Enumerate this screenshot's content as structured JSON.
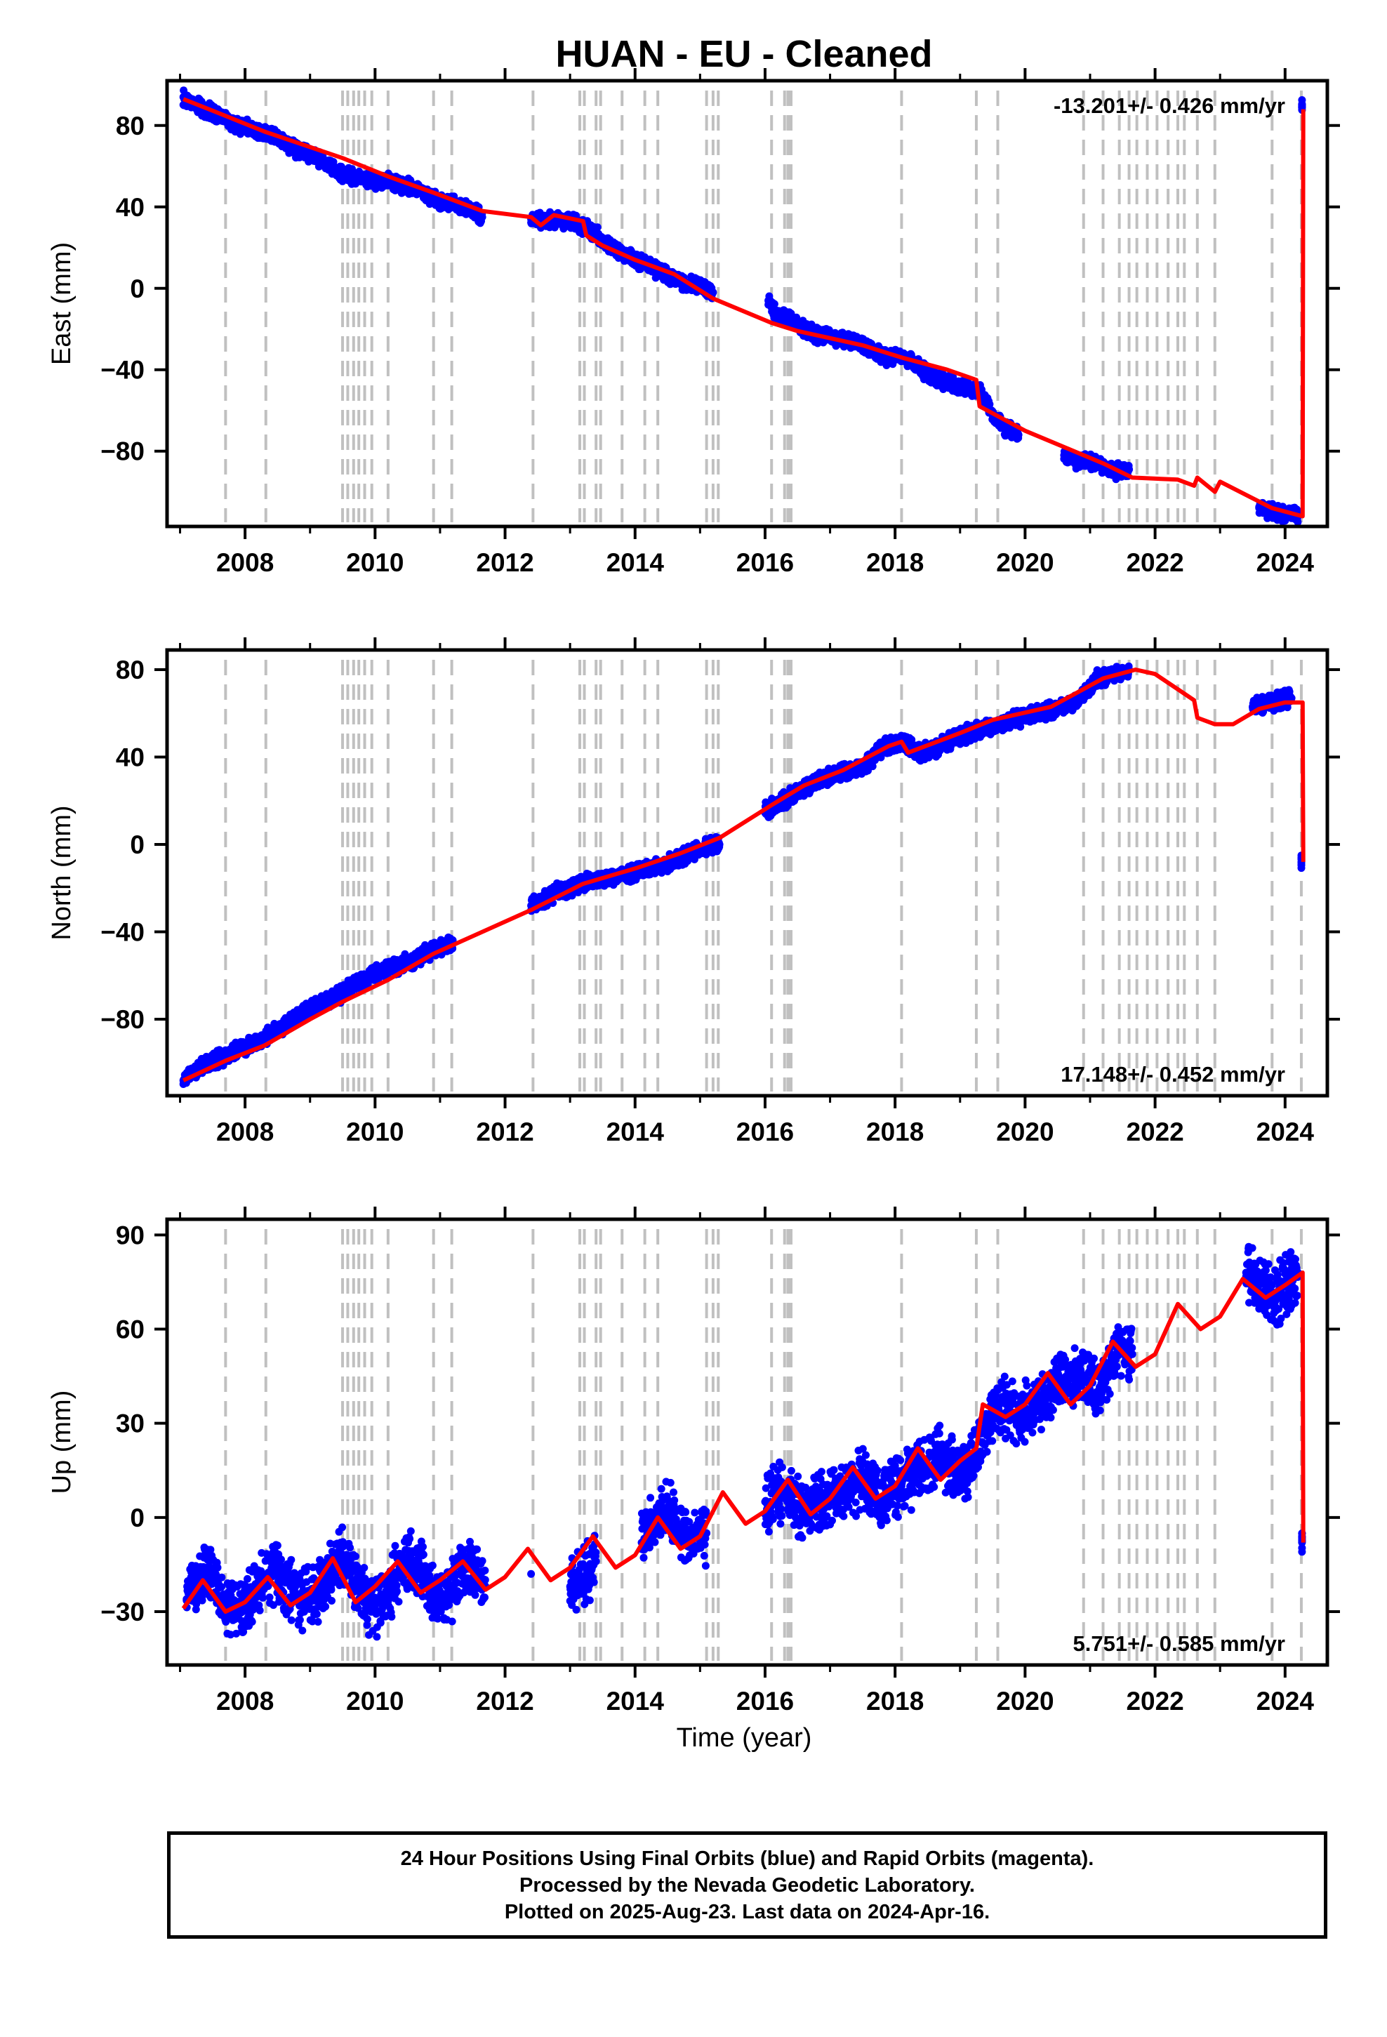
{
  "figure": {
    "title": "HUAN  - EU - Cleaned"
  },
  "colors": {
    "final_orbits": "#0000ff",
    "model": "#ff0000",
    "steps": "#c0c0c0",
    "frame": "#000000"
  },
  "step_years": [
    2007.7,
    2008.32,
    2009.5,
    2009.58,
    2009.67,
    2009.75,
    2009.84,
    2009.95,
    2010.2,
    2010.9,
    2011.18,
    2012.43,
    2013.15,
    2013.22,
    2013.4,
    2013.47,
    2013.8,
    2014.15,
    2014.35,
    2015.1,
    2015.2,
    2015.28,
    2016.1,
    2016.3,
    2016.35,
    2016.38,
    2016.4,
    2018.1,
    2019.25,
    2019.58,
    2020.9,
    2021.2,
    2021.45,
    2021.6,
    2021.72,
    2021.88,
    2022.03,
    2022.2,
    2022.35,
    2022.45,
    2022.65,
    2022.92,
    2023.8,
    2024.25
  ],
  "chart_data": [
    {
      "type": "scatter",
      "id": "east",
      "title": "HUAN  - EU - Cleaned",
      "xlabel": "",
      "ylabel": "East (mm)",
      "xlim": [
        2006.8,
        2024.65
      ],
      "ylim": [
        -117,
        102
      ],
      "xticks": [
        2008,
        2010,
        2012,
        2014,
        2016,
        2018,
        2020,
        2022,
        2024
      ],
      "xtick_labels": [
        "2008",
        "2010",
        "2012",
        "2014",
        "2016",
        "2018",
        "2020",
        "2022",
        "2024"
      ],
      "yticks": [
        -80,
        -40,
        0,
        40,
        80
      ],
      "ytick_labels": [
        "−80",
        "−40",
        "0",
        "40",
        "80"
      ],
      "rate_label": "-13.201+/- 0.426 mm/yr",
      "rate_label_position": "top-right",
      "grid": false,
      "series": [
        {
          "x": [
            2007.05,
            2007.2,
            2007.4,
            2007.6,
            2007.8,
            2008.0,
            2008.2,
            2008.4,
            2008.6,
            2008.8,
            2009.0,
            2009.2,
            2009.45,
            2009.6,
            2009.8,
            2010.0,
            2010.2,
            2010.4,
            2010.6,
            2010.8,
            2011.0,
            2011.2,
            2011.45,
            2011.65,
            2012.4,
            2012.75,
            2013.0,
            2013.3,
            2013.6,
            2013.85,
            2014.0,
            2014.2,
            2014.4,
            2014.6,
            2014.8,
            2015.0,
            2015.2,
            2016.05,
            2016.2,
            2016.4,
            2016.6,
            2016.8,
            2017.0,
            2017.2,
            2017.4,
            2017.7,
            2017.9,
            2018.1,
            2018.3,
            2018.5,
            2018.7,
            2018.9,
            2019.1,
            2019.3,
            2019.5,
            2019.7,
            2019.9,
            2020.6,
            2020.8,
            2021.0,
            2021.2,
            2021.4,
            2021.6,
            2023.6,
            2023.8,
            2024.0,
            2024.2,
            2024.26
          ],
          "y": [
            94,
            91,
            88,
            84,
            81,
            79,
            77,
            75,
            71,
            68,
            66,
            62,
            57,
            55,
            54,
            53,
            53,
            51,
            49,
            46,
            43,
            42,
            39,
            35,
            34,
            33,
            33,
            29,
            21,
            16,
            14,
            11,
            8,
            5,
            2,
            1,
            -2,
            -6,
            -13,
            -16,
            -20,
            -23,
            -24,
            -25,
            -26,
            -31,
            -34,
            -33,
            -37,
            -42,
            -45,
            -48,
            -49,
            -50,
            -62,
            -69,
            -72,
            -82,
            -85,
            -85,
            -87,
            -90,
            -89,
            -108,
            -110,
            -111,
            -112,
            90
          ],
          "note": "daily positions (final orbits), summarized"
        },
        {
          "x": [
            2007.05,
            2007.6,
            2008.3,
            2009.5,
            2010.2,
            2010.9,
            2011.65,
            2012.4,
            2012.55,
            2012.75,
            2013.2,
            2013.25,
            2013.5,
            2014.0,
            2014.6,
            2015.2,
            2016.1,
            2016.5,
            2017.5,
            2018.1,
            2018.8,
            2019.25,
            2019.3,
            2020.0,
            2021.2,
            2021.65,
            2022.35,
            2022.6,
            2022.65,
            2022.92,
            2023.0,
            2023.8,
            2024.27,
            2024.28
          ],
          "y": [
            93,
            86,
            77,
            64,
            55,
            47,
            38,
            35,
            31,
            36,
            33,
            26,
            21,
            14,
            7,
            -5,
            -17,
            -21,
            -28,
            -34,
            -40,
            -45,
            -58,
            -70,
            -86,
            -93,
            -94,
            -97,
            -93,
            -100,
            -95,
            -108,
            -112,
            88
          ],
          "note": "model fit"
        }
      ]
    },
    {
      "type": "scatter",
      "id": "north",
      "xlabel": "",
      "ylabel": "North (mm)",
      "xlim": [
        2006.8,
        2024.65
      ],
      "ylim": [
        -115,
        89
      ],
      "xticks": [
        2008,
        2010,
        2012,
        2014,
        2016,
        2018,
        2020,
        2022,
        2024
      ],
      "xtick_labels": [
        "2008",
        "2010",
        "2012",
        "2014",
        "2016",
        "2018",
        "2020",
        "2022",
        "2024"
      ],
      "yticks": [
        -80,
        -40,
        0,
        40,
        80
      ],
      "ytick_labels": [
        "−80",
        "−40",
        "0",
        "40",
        "80"
      ],
      "rate_label": "17.148+/- 0.452 mm/yr",
      "rate_label_position": "bottom-right",
      "grid": false,
      "series": [
        {
          "x": [
            2007.05,
            2007.3,
            2007.6,
            2007.9,
            2008.2,
            2008.5,
            2008.8,
            2009.1,
            2009.4,
            2009.7,
            2010.0,
            2010.3,
            2010.6,
            2010.9,
            2011.2,
            2012.4,
            2012.8,
            2013.1,
            2013.4,
            2013.8,
            2014.1,
            2014.4,
            2014.7,
            2015.0,
            2015.3,
            2016.0,
            2016.3,
            2016.6,
            2016.9,
            2017.2,
            2017.5,
            2017.8,
            2018.1,
            2018.4,
            2018.7,
            2019.0,
            2019.3,
            2019.6,
            2019.9,
            2020.2,
            2020.5,
            2020.8,
            2021.1,
            2021.4,
            2021.6,
            2023.5,
            2023.8,
            2024.1,
            2024.25
          ],
          "y": [
            -108,
            -102,
            -98,
            -94,
            -90,
            -85,
            -79,
            -74,
            -70,
            -64,
            -59,
            -56,
            -53,
            -48,
            -45,
            -28,
            -22,
            -19,
            -16,
            -14,
            -12,
            -10,
            -6,
            -2,
            0,
            15,
            20,
            26,
            31,
            33,
            35,
            44,
            47,
            42,
            45,
            50,
            52,
            55,
            58,
            60,
            62,
            65,
            76,
            78,
            80,
            63,
            65,
            67,
            -8
          ],
          "note": "daily positions (final orbits), summarized"
        },
        {
          "x": [
            2007.05,
            2007.7,
            2008.3,
            2009.0,
            2009.5,
            2010.2,
            2010.9,
            2011.5,
            2012.4,
            2013.2,
            2014.0,
            2014.7,
            2015.3,
            2016.1,
            2016.6,
            2017.2,
            2017.9,
            2018.1,
            2018.2,
            2019.0,
            2019.5,
            2020.4,
            2021.2,
            2021.7,
            2022.0,
            2022.3,
            2022.6,
            2022.65,
            2022.92,
            2023.2,
            2023.6,
            2024.0,
            2024.27,
            2024.28
          ],
          "y": [
            -108,
            -99,
            -92,
            -80,
            -72,
            -62,
            -50,
            -42,
            -30,
            -18,
            -11,
            -4,
            3,
            18,
            27,
            34,
            45,
            47,
            42,
            51,
            57,
            63,
            76,
            80,
            78,
            72,
            66,
            58,
            55,
            55,
            62,
            65,
            65,
            -8
          ],
          "note": "model fit"
        }
      ]
    },
    {
      "type": "scatter",
      "id": "up",
      "xlabel": "Time (year)",
      "ylabel": "Up (mm)",
      "xlim": [
        2006.8,
        2024.65
      ],
      "ylim": [
        -47,
        95
      ],
      "xticks": [
        2008,
        2010,
        2012,
        2014,
        2016,
        2018,
        2020,
        2022,
        2024
      ],
      "xtick_labels": [
        "2008",
        "2010",
        "2012",
        "2014",
        "2016",
        "2018",
        "2020",
        "2022",
        "2024"
      ],
      "yticks": [
        -30,
        0,
        30,
        60,
        90
      ],
      "ytick_labels": [
        "−30",
        "0",
        "30",
        "60",
        "90"
      ],
      "rate_label": "5.751+/- 0.585 mm/yr",
      "rate_label_position": "bottom-right",
      "grid": false,
      "series": [
        {
          "x": [
            2007.1,
            2007.3,
            2007.5,
            2007.7,
            2007.9,
            2008.1,
            2008.3,
            2008.5,
            2008.7,
            2008.9,
            2009.1,
            2009.3,
            2009.5,
            2009.7,
            2009.9,
            2010.1,
            2010.3,
            2010.5,
            2010.7,
            2010.9,
            2011.1,
            2011.3,
            2011.5,
            2011.7,
            2012.4,
            2013.0,
            2013.2,
            2013.4,
            2014.1,
            2014.3,
            2014.5,
            2014.7,
            2014.9,
            2015.1,
            2016.0,
            2016.2,
            2016.4,
            2016.6,
            2016.9,
            2017.2,
            2017.5,
            2017.8,
            2018.1,
            2018.4,
            2018.7,
            2019.0,
            2019.2,
            2019.4,
            2019.6,
            2019.9,
            2020.2,
            2020.5,
            2020.8,
            2021.1,
            2021.3,
            2021.5,
            2021.65,
            2023.4,
            2023.6,
            2023.8,
            2024.0,
            2024.2,
            2024.26
          ],
          "y": [
            -26,
            -20,
            -18,
            -28,
            -30,
            -27,
            -20,
            -17,
            -22,
            -26,
            -24,
            -18,
            -12,
            -20,
            -28,
            -27,
            -20,
            -14,
            -16,
            -25,
            -27,
            -18,
            -16,
            -22,
            -18,
            -22,
            -19,
            -14,
            -8,
            0,
            2,
            -4,
            -6,
            -5,
            5,
            8,
            6,
            2,
            5,
            8,
            12,
            6,
            10,
            16,
            20,
            14,
            18,
            30,
            36,
            32,
            36,
            42,
            46,
            40,
            48,
            54,
            52,
            78,
            74,
            70,
            74,
            78,
            -8
          ],
          "note": "daily positions (final orbits), summarized"
        },
        {
          "x": [
            2007.05,
            2007.35,
            2007.7,
            2008.0,
            2008.35,
            2008.7,
            2009.0,
            2009.35,
            2009.7,
            2010.0,
            2010.35,
            2010.7,
            2011.0,
            2011.35,
            2011.7,
            2012.0,
            2012.35,
            2012.7,
            2013.0,
            2013.35,
            2013.7,
            2014.0,
            2014.35,
            2014.7,
            2015.0,
            2015.35,
            2015.7,
            2016.0,
            2016.35,
            2016.7,
            2017.0,
            2017.35,
            2017.7,
            2018.0,
            2018.35,
            2018.7,
            2019.0,
            2019.25,
            2019.35,
            2019.7,
            2020.0,
            2020.35,
            2020.7,
            2021.0,
            2021.35,
            2021.7,
            2022.0,
            2022.35,
            2022.7,
            2023.0,
            2023.35,
            2023.7,
            2024.0,
            2024.27,
            2024.28
          ],
          "y": [
            -29,
            -20,
            -30,
            -27,
            -19,
            -28,
            -24,
            -13,
            -27,
            -22,
            -14,
            -24,
            -20,
            -14,
            -23,
            -19,
            -10,
            -20,
            -16,
            -6,
            -16,
            -12,
            0,
            -10,
            -6,
            8,
            -2,
            2,
            12,
            1,
            6,
            16,
            6,
            10,
            22,
            12,
            18,
            22,
            36,
            32,
            36,
            46,
            36,
            42,
            56,
            48,
            52,
            68,
            60,
            64,
            76,
            70,
            74,
            78,
            -8
          ],
          "note": "model fit"
        }
      ]
    }
  ],
  "footer": {
    "line1": "24 Hour Positions Using Final Orbits (blue) and Rapid Orbits (magenta).",
    "line2": "Processed by the Nevada Geodetic Laboratory.",
    "line3": "Plotted on 2025-Aug-23. Last data on 2024-Apr-16."
  }
}
